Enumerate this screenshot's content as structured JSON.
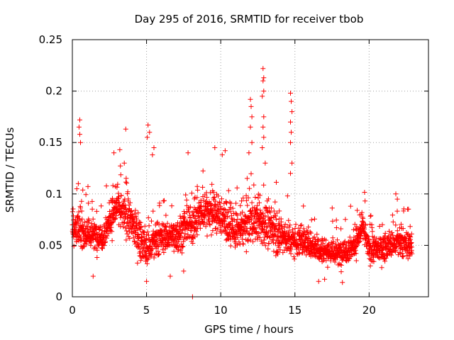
{
  "chart_data": {
    "type": "scatter",
    "title": "Day 295 of 2016, SRMTID for receiver tbob",
    "xlabel": "GPS time / hours",
    "ylabel": "SRMTID / TECUs",
    "xlim": [
      0,
      24
    ],
    "ylim": [
      0,
      0.25
    ],
    "xticks": [
      0,
      5,
      10,
      15,
      20
    ],
    "xtick_labels": [
      "0",
      "5",
      "10",
      "15",
      "20"
    ],
    "yticks": [
      0,
      0.05,
      0.1,
      0.15,
      0.2,
      0.25
    ],
    "ytick_labels": [
      "0",
      "0.05",
      "0.1",
      "0.15",
      "0.2",
      "0.25"
    ],
    "grid": true,
    "marker": "+",
    "series": [
      {
        "name": "SRMTID",
        "color": "#ff0000",
        "x_range": [
          0,
          22.9
        ],
        "envelope": [
          {
            "x": 0.0,
            "median": 0.068,
            "spread": 0.03
          },
          {
            "x": 1.0,
            "median": 0.062,
            "spread": 0.025
          },
          {
            "x": 2.0,
            "median": 0.058,
            "spread": 0.022
          },
          {
            "x": 3.0,
            "median": 0.088,
            "spread": 0.03
          },
          {
            "x": 4.0,
            "median": 0.072,
            "spread": 0.03
          },
          {
            "x": 5.0,
            "median": 0.045,
            "spread": 0.03
          },
          {
            "x": 6.0,
            "median": 0.058,
            "spread": 0.025
          },
          {
            "x": 7.0,
            "median": 0.06,
            "spread": 0.025
          },
          {
            "x": 8.0,
            "median": 0.07,
            "spread": 0.028
          },
          {
            "x": 9.0,
            "median": 0.085,
            "spread": 0.03
          },
          {
            "x": 10.0,
            "median": 0.078,
            "spread": 0.03
          },
          {
            "x": 11.0,
            "median": 0.062,
            "spread": 0.028
          },
          {
            "x": 12.0,
            "median": 0.075,
            "spread": 0.035
          },
          {
            "x": 13.0,
            "median": 0.07,
            "spread": 0.035
          },
          {
            "x": 14.0,
            "median": 0.06,
            "spread": 0.028
          },
          {
            "x": 15.0,
            "median": 0.055,
            "spread": 0.025
          },
          {
            "x": 16.0,
            "median": 0.052,
            "spread": 0.022
          },
          {
            "x": 17.0,
            "median": 0.045,
            "spread": 0.02
          },
          {
            "x": 18.0,
            "median": 0.042,
            "spread": 0.02
          },
          {
            "x": 19.0,
            "median": 0.05,
            "spread": 0.022
          },
          {
            "x": 19.6,
            "median": 0.068,
            "spread": 0.022
          },
          {
            "x": 20.0,
            "median": 0.045,
            "spread": 0.02
          },
          {
            "x": 21.0,
            "median": 0.048,
            "spread": 0.02
          },
          {
            "x": 22.0,
            "median": 0.052,
            "spread": 0.022
          },
          {
            "x": 22.9,
            "median": 0.05,
            "spread": 0.022
          }
        ],
        "outliers": [
          [
            0.5,
            0.172
          ],
          [
            0.45,
            0.165
          ],
          [
            0.5,
            0.158
          ],
          [
            0.55,
            0.15
          ],
          [
            0.4,
            0.11
          ],
          [
            0.3,
            0.105
          ],
          [
            1.4,
            0.02
          ],
          [
            2.8,
            0.14
          ],
          [
            3.2,
            0.143
          ],
          [
            3.6,
            0.163
          ],
          [
            3.5,
            0.13
          ],
          [
            5.1,
            0.167
          ],
          [
            5.2,
            0.16
          ],
          [
            5.05,
            0.155
          ],
          [
            5.0,
            0.015
          ],
          [
            5.5,
            0.145
          ],
          [
            5.4,
            0.138
          ],
          [
            6.6,
            0.02
          ],
          [
            7.5,
            0.025
          ],
          [
            7.8,
            0.14
          ],
          [
            8.1,
            0.0
          ],
          [
            9.6,
            0.145
          ],
          [
            10.1,
            0.138
          ],
          [
            10.3,
            0.142
          ],
          [
            12.0,
            0.192
          ],
          [
            12.05,
            0.185
          ],
          [
            12.1,
            0.175
          ],
          [
            12.0,
            0.165
          ],
          [
            12.1,
            0.15
          ],
          [
            11.9,
            0.14
          ],
          [
            12.85,
            0.222
          ],
          [
            12.9,
            0.213
          ],
          [
            12.85,
            0.21
          ],
          [
            12.9,
            0.2
          ],
          [
            12.8,
            0.195
          ],
          [
            12.9,
            0.175
          ],
          [
            12.85,
            0.165
          ],
          [
            12.9,
            0.155
          ],
          [
            12.8,
            0.145
          ],
          [
            13.0,
            0.13
          ],
          [
            14.7,
            0.198
          ],
          [
            14.75,
            0.19
          ],
          [
            14.8,
            0.18
          ],
          [
            14.7,
            0.17
          ],
          [
            14.75,
            0.16
          ],
          [
            14.7,
            0.15
          ],
          [
            14.8,
            0.13
          ],
          [
            14.7,
            0.12
          ],
          [
            16.6,
            0.015
          ],
          [
            17.0,
            0.017
          ],
          [
            18.2,
            0.014
          ],
          [
            21.8,
            0.1
          ],
          [
            21.9,
            0.095
          ]
        ]
      }
    ]
  }
}
